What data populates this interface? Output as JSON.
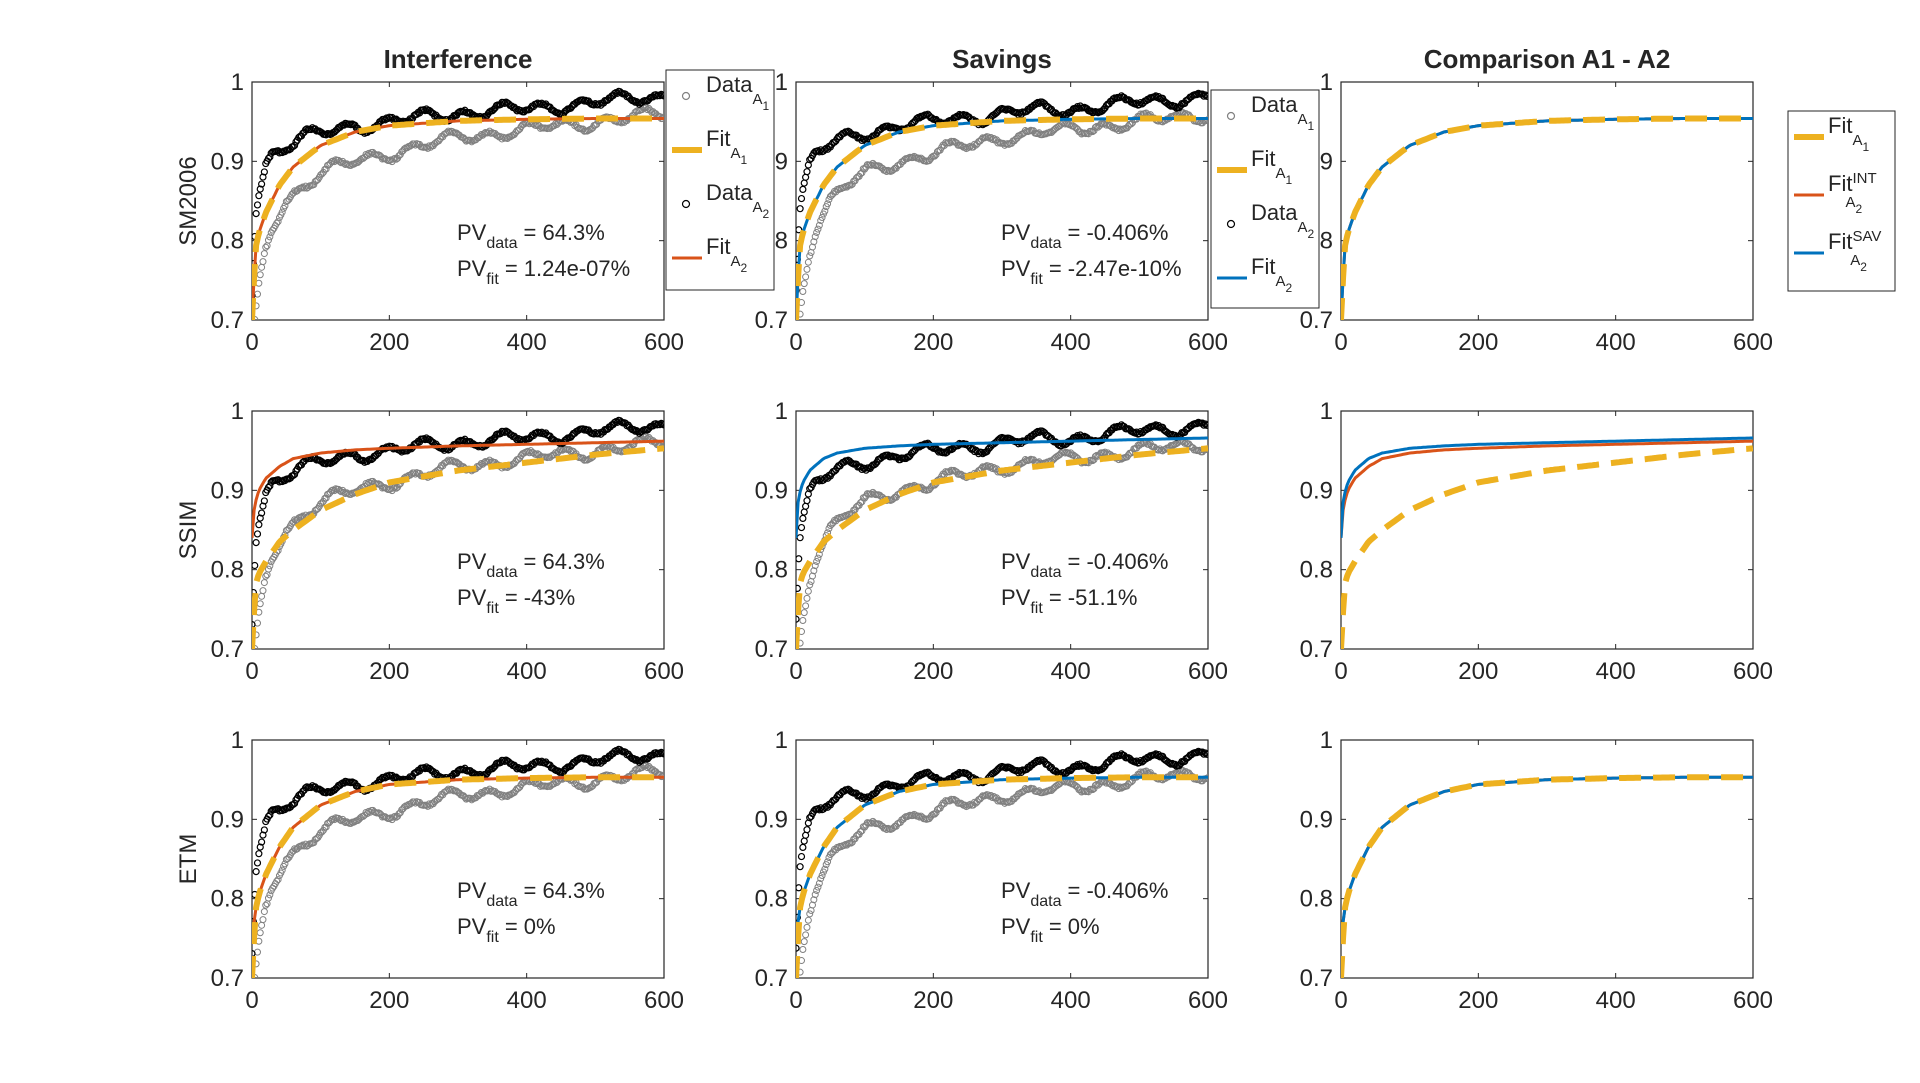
{
  "chart_data": {
    "type": "scatter",
    "layout": "3x3 grid of subplots",
    "column_titles": [
      "Interference",
      "Savings",
      "Comparison A1 - A2"
    ],
    "row_labels": [
      "SM2006",
      "SSIM",
      "ETM"
    ],
    "xlim": [
      0,
      600
    ],
    "ylim": [
      0.7,
      1
    ],
    "xticks": [
      "0",
      "200",
      "400",
      "600"
    ],
    "yticks": [
      "0.7",
      "0.8",
      "0.9",
      "1"
    ],
    "grid": false,
    "colors": {
      "data_a1": "#808080",
      "data_a2": "#000000",
      "fit_a1": "#EDB120",
      "fit_int": "#D95319",
      "fit_sav": "#0072BD"
    },
    "legends": {
      "interference": {
        "placement": "right of first Interference panel",
        "entries": [
          {
            "key": "data_a1",
            "base": "Data",
            "sub": "A",
            "subsub": "1"
          },
          {
            "key": "fit_a1",
            "base": "Fit",
            "sub": "A",
            "subsub": "1"
          },
          {
            "key": "data_a2",
            "base": "Data",
            "sub": "A",
            "subsub": "2"
          },
          {
            "key": "fit_int",
            "base": "Fit",
            "sub": "A",
            "subsub": "2"
          }
        ]
      },
      "savings": {
        "placement": "right of first Savings panel",
        "entries": [
          {
            "key": "data_a1",
            "base": "Data",
            "sub": "A",
            "subsub": "1"
          },
          {
            "key": "fit_a1",
            "base": "Fit",
            "sub": "A",
            "subsub": "1"
          },
          {
            "key": "data_a2",
            "base": "Data",
            "sub": "A",
            "subsub": "2"
          },
          {
            "key": "fit_sav",
            "base": "Fit",
            "sub": "A",
            "subsub": "2"
          }
        ]
      },
      "comparison": {
        "placement": "right of first Comparison panel",
        "entries": [
          {
            "key": "fit_a1",
            "base": "Fit",
            "sub": "A",
            "subsub": "1",
            "sup": ""
          },
          {
            "key": "fit_int",
            "base": "Fit",
            "sub": "A",
            "subsub": "2",
            "sup": "INT"
          },
          {
            "key": "fit_sav",
            "base": "Fit",
            "sub": "A",
            "subsub": "2",
            "sup": "SAV"
          }
        ]
      }
    },
    "annotations": [
      {
        "row": 0,
        "col": 0,
        "pv_data": "= 64.3%",
        "pv_fit": "= 1.24e-07%"
      },
      {
        "row": 0,
        "col": 1,
        "pv_data": "= -0.406%",
        "pv_fit": "= -2.47e-10%"
      },
      {
        "row": 1,
        "col": 0,
        "pv_data": "= 64.3%",
        "pv_fit": "= -43%"
      },
      {
        "row": 1,
        "col": 1,
        "pv_data": "= -0.406%",
        "pv_fit": "= -51.1%"
      },
      {
        "row": 2,
        "col": 0,
        "pv_data": "= 64.3%",
        "pv_fit": "= 0%"
      },
      {
        "row": 2,
        "col": 1,
        "pv_data": "= -0.406%",
        "pv_fit": "= 0%"
      }
    ],
    "annotation_labels": {
      "pv": "PV",
      "data_sub": "data",
      "fit_sub": "fit"
    },
    "data_series": {
      "data_a1": {
        "x": [
          0,
          5,
          10,
          20,
          30,
          50,
          75,
          100,
          150,
          200,
          250,
          300,
          350,
          400,
          450,
          500,
          550,
          600
        ],
        "y": [
          0.66,
          0.7,
          0.74,
          0.79,
          0.82,
          0.85,
          0.87,
          0.885,
          0.9,
          0.91,
          0.92,
          0.93,
          0.935,
          0.94,
          0.945,
          0.95,
          0.955,
          0.96
        ]
      },
      "data_a2": {
        "x": [
          0,
          3,
          6,
          10,
          20,
          30,
          50,
          75,
          100,
          150,
          200,
          250,
          300,
          350,
          400,
          450,
          500,
          550,
          600
        ],
        "y": [
          0.74,
          0.8,
          0.84,
          0.86,
          0.895,
          0.91,
          0.92,
          0.93,
          0.935,
          0.945,
          0.95,
          0.955,
          0.96,
          0.965,
          0.965,
          0.97,
          0.975,
          0.978,
          0.982
        ]
      }
    },
    "fit_series": {
      "SM2006": {
        "fit_a1": {
          "x": [
            0,
            5,
            10,
            20,
            40,
            60,
            100,
            150,
            200,
            300,
            400,
            500,
            600
          ],
          "y": [
            0.7,
            0.79,
            0.81,
            0.835,
            0.87,
            0.893,
            0.92,
            0.937,
            0.945,
            0.951,
            0.953,
            0.954,
            0.954
          ]
        },
        "fit_int": {
          "x": [
            0,
            5,
            10,
            20,
            40,
            60,
            100,
            150,
            200,
            300,
            400,
            500,
            600
          ],
          "y": [
            0.7,
            0.79,
            0.81,
            0.835,
            0.87,
            0.893,
            0.92,
            0.937,
            0.945,
            0.951,
            0.953,
            0.954,
            0.954
          ]
        },
        "fit_sav": {
          "x": [
            0,
            5,
            10,
            20,
            40,
            60,
            100,
            150,
            200,
            300,
            400,
            500,
            600
          ],
          "y": [
            0.7,
            0.79,
            0.81,
            0.835,
            0.87,
            0.893,
            0.92,
            0.937,
            0.945,
            0.951,
            0.953,
            0.954,
            0.954
          ]
        }
      },
      "SSIM": {
        "fit_a1": {
          "x": [
            0,
            5,
            10,
            20,
            40,
            60,
            100,
            150,
            200,
            300,
            400,
            500,
            600
          ],
          "y": [
            0.7,
            0.78,
            0.795,
            0.81,
            0.835,
            0.85,
            0.875,
            0.895,
            0.91,
            0.925,
            0.935,
            0.945,
            0.953
          ]
        },
        "fit_int": {
          "x": [
            0,
            2,
            5,
            10,
            20,
            40,
            60,
            100,
            150,
            200,
            300,
            400,
            500,
            600
          ],
          "y": [
            0.84,
            0.87,
            0.885,
            0.9,
            0.915,
            0.93,
            0.94,
            0.947,
            0.951,
            0.953,
            0.956,
            0.958,
            0.96,
            0.962
          ]
        },
        "fit_sav": {
          "x": [
            0,
            2,
            5,
            10,
            20,
            40,
            60,
            100,
            150,
            200,
            300,
            400,
            500,
            600
          ],
          "y": [
            0.84,
            0.88,
            0.895,
            0.91,
            0.925,
            0.94,
            0.947,
            0.953,
            0.956,
            0.958,
            0.96,
            0.962,
            0.964,
            0.966
          ]
        }
      },
      "ETM": {
        "fit_a1": {
          "x": [
            0,
            5,
            10,
            20,
            40,
            60,
            100,
            150,
            200,
            300,
            400,
            500,
            600
          ],
          "y": [
            0.7,
            0.785,
            0.805,
            0.83,
            0.865,
            0.89,
            0.918,
            0.935,
            0.944,
            0.95,
            0.952,
            0.953,
            0.953
          ]
        },
        "fit_int": {
          "x": [
            0,
            5,
            10,
            20,
            40,
            60,
            100,
            150,
            200,
            300,
            400,
            500,
            600
          ],
          "y": [
            0.75,
            0.785,
            0.805,
            0.83,
            0.865,
            0.89,
            0.918,
            0.935,
            0.944,
            0.95,
            0.952,
            0.953,
            0.953
          ]
        },
        "fit_sav": {
          "x": [
            0,
            5,
            10,
            20,
            40,
            60,
            100,
            150,
            200,
            300,
            400,
            500,
            600
          ],
          "y": [
            0.75,
            0.785,
            0.805,
            0.83,
            0.865,
            0.89,
            0.918,
            0.935,
            0.944,
            0.95,
            0.952,
            0.953,
            0.953
          ]
        }
      }
    }
  }
}
